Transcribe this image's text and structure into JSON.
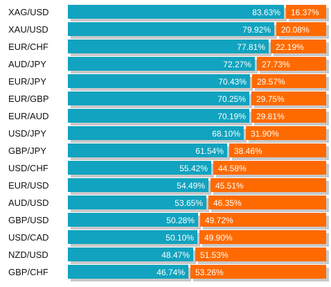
{
  "chart_data": {
    "type": "bar",
    "stacked": true,
    "orientation": "horizontal",
    "percent": true,
    "categories": [
      "XAG/USD",
      "XAU/USD",
      "EUR/CHF",
      "AUD/JPY",
      "EUR/JPY",
      "EUR/GBP",
      "EUR/AUD",
      "USD/JPY",
      "GBP/JPY",
      "USD/CHF",
      "EUR/USD",
      "AUD/USD",
      "GBP/USD",
      "USD/CAD",
      "NZD/USD",
      "GBP/CHF"
    ],
    "series": [
      {
        "color": "#11a3bf",
        "values": [
          83.63,
          79.92,
          77.81,
          72.27,
          70.43,
          70.25,
          70.19,
          68.1,
          61.54,
          55.42,
          54.49,
          53.65,
          50.28,
          50.1,
          48.47,
          46.74
        ],
        "labels": [
          "83.63%",
          "79.92%",
          "77.81%",
          "72.27%",
          "70.43%",
          "70.25%",
          "70.19%",
          "68.10%",
          "61.54%",
          "55.42%",
          "54.49%",
          "53.65%",
          "50.28%",
          "50.10%",
          "48.47%",
          "46.74%"
        ]
      },
      {
        "color": "#ff6a00",
        "values": [
          16.37,
          20.08,
          22.19,
          27.73,
          29.57,
          29.75,
          29.81,
          31.9,
          38.46,
          44.58,
          45.51,
          46.35,
          49.72,
          49.9,
          51.53,
          53.26
        ],
        "labels": [
          "16.37%",
          "20.08%",
          "22.19%",
          "27.73%",
          "29.57%",
          "29.75%",
          "29.81%",
          "31.90%",
          "38.46%",
          "44.58%",
          "45.51%",
          "46.35%",
          "49.72%",
          "49.90%",
          "51.53%",
          "53.26%"
        ]
      }
    ],
    "shadow_color": "#c8c8c8"
  }
}
